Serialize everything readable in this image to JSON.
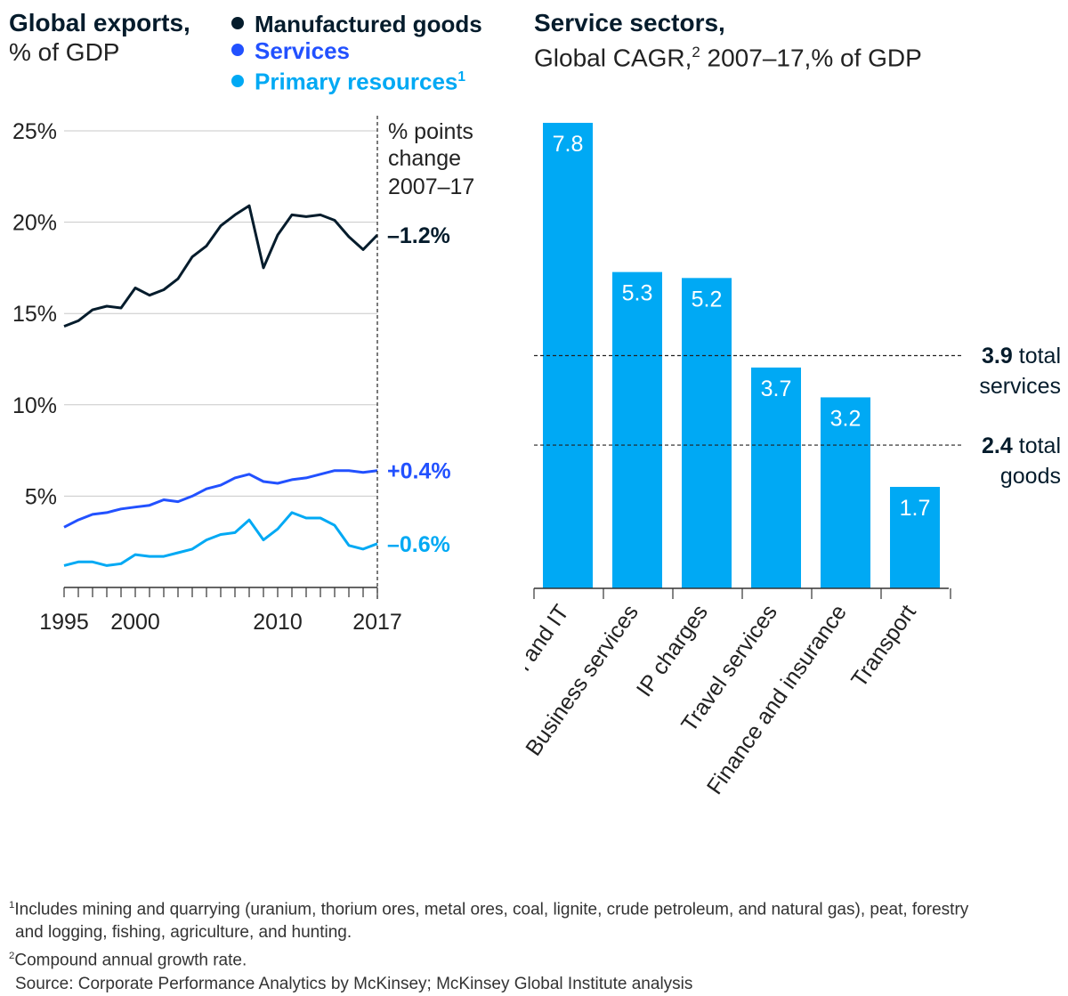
{
  "left": {
    "title": "Global exports,",
    "subtitle": "% of GDP",
    "legend": [
      {
        "label": "Manufactured goods",
        "color": "#051c2c"
      },
      {
        "label": "Services",
        "color": "#2251ff"
      },
      {
        "label": "Primary resources",
        "sup": "1",
        "color": "#00a9f4"
      }
    ],
    "change_header": [
      "% points",
      "change",
      "2007–17"
    ]
  },
  "right": {
    "title": "Service sectors,",
    "subtitle": "Global CAGR,",
    "subtitle_sup": "2",
    "subtitle_rest": " 2007–17,% of GDP",
    "ref_services": {
      "value": "3.9",
      "label1": " total",
      "label2": "services"
    },
    "ref_goods": {
      "value": "2.4",
      "label1": " total",
      "label2": "goods"
    }
  },
  "chart_data": [
    {
      "type": "line",
      "title": "Global exports, % of GDP",
      "x": [
        1995,
        1996,
        1997,
        1998,
        1999,
        2000,
        2001,
        2002,
        2003,
        2004,
        2005,
        2006,
        2007,
        2008,
        2009,
        2010,
        2011,
        2012,
        2013,
        2014,
        2015,
        2016,
        2017
      ],
      "xticks": [
        {
          "value": 1995,
          "label": "1995"
        },
        {
          "value": 2000,
          "label": "2000"
        },
        {
          "value": 2010,
          "label": "2010"
        },
        {
          "value": 2017,
          "label": "2017"
        }
      ],
      "yticks": [
        {
          "value": 25,
          "label": "25%"
        },
        {
          "value": 20,
          "label": "20%"
        },
        {
          "value": 15,
          "label": "15%"
        },
        {
          "value": 10,
          "label": "10%"
        },
        {
          "value": 5,
          "label": "5%"
        }
      ],
      "ylim": [
        0,
        25
      ],
      "series": [
        {
          "name": "Manufactured goods",
          "color": "#051c2c",
          "change": "–1.2%",
          "values": [
            14.3,
            14.6,
            15.2,
            15.4,
            15.3,
            16.4,
            16.0,
            16.3,
            16.9,
            18.1,
            18.7,
            19.8,
            20.4,
            20.9,
            17.5,
            19.3,
            20.4,
            20.3,
            20.4,
            20.1,
            19.2,
            18.5,
            19.3
          ]
        },
        {
          "name": "Services",
          "color": "#2251ff",
          "change": "+0.4%",
          "values": [
            3.3,
            3.7,
            4.0,
            4.1,
            4.3,
            4.4,
            4.5,
            4.8,
            4.7,
            5.0,
            5.4,
            5.6,
            6.0,
            6.2,
            5.8,
            5.7,
            5.9,
            6.0,
            6.2,
            6.4,
            6.4,
            6.3,
            6.4
          ]
        },
        {
          "name": "Primary resources",
          "color": "#00a9f4",
          "change": "–0.6%",
          "values": [
            1.2,
            1.4,
            1.4,
            1.2,
            1.3,
            1.8,
            1.7,
            1.7,
            1.9,
            2.1,
            2.6,
            2.9,
            3.0,
            3.7,
            2.6,
            3.2,
            4.1,
            3.8,
            3.8,
            3.4,
            2.3,
            2.1,
            2.4
          ]
        }
      ]
    },
    {
      "type": "bar",
      "title": "Service sectors, Global CAGR 2007–17, % of GDP",
      "categories": [
        "Telecom and IT",
        "Business services",
        "IP charges",
        "Travel services",
        "Finance and insurance",
        "Transport"
      ],
      "values": [
        7.8,
        5.3,
        5.2,
        3.7,
        3.2,
        1.7
      ],
      "value_labels": [
        "7.8",
        "5.3",
        "5.2",
        "3.7",
        "3.2",
        "1.7"
      ],
      "color": "#00a9f4",
      "ylim": [
        0,
        7.8
      ],
      "reference_lines": [
        {
          "value": 3.9,
          "label": "total services"
        },
        {
          "value": 2.4,
          "label": "total goods"
        }
      ]
    }
  ],
  "footnotes": {
    "note1_sup": "1",
    "note1_line1": "Includes mining and quarrying (uranium, thorium ores, metal ores, coal, lignite, crude petroleum, and natural gas), peat, forestry",
    "note1_line2": "and logging, fishing, agriculture, and hunting.",
    "note2_sup": "2",
    "note2": "Compound annual growth rate.",
    "source": "Source: Corporate Performance Analytics by McKinsey; McKinsey Global Institute analysis"
  }
}
